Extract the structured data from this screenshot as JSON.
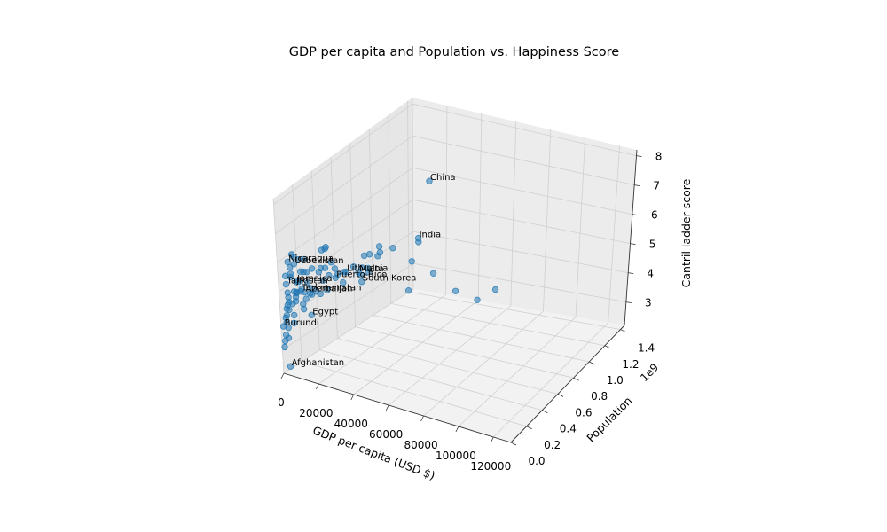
{
  "chart_data": {
    "type": "scatter",
    "projection": "3d",
    "title": "GDP per capita and Population vs. Happiness Score",
    "xlabel": "GDP per capita (USD $)",
    "ylabel": "Population",
    "zlabel": "Cantril ladder score",
    "y_offset_text": "1e9",
    "xlim": [
      0,
      130000
    ],
    "ylim": [
      0,
      1.45
    ],
    "zlim": [
      2.2,
      8.2
    ],
    "xticks": [
      "0",
      "20000",
      "40000",
      "60000",
      "80000",
      "100000",
      "120000"
    ],
    "yticks": [
      "0.0",
      "0.2",
      "0.4",
      "0.6",
      "0.8",
      "1.0",
      "1.2",
      "1.4"
    ],
    "zticks": [
      "3",
      "4",
      "5",
      "6",
      "7",
      "8"
    ],
    "grid": true,
    "point_color": "#1f77b4",
    "points": [
      {
        "x": 12000,
        "y": 1.41,
        "z": 5.8,
        "label": "China"
      },
      {
        "x": 7000,
        "y": 1.38,
        "z": 4.0,
        "label": "India"
      },
      {
        "x": 32000,
        "y": 0.0032,
        "z": 6.0,
        "label": "Puerto Rico"
      },
      {
        "x": 38000,
        "y": 0.0028,
        "z": 6.3,
        "label": "Lithuania"
      },
      {
        "x": 45000,
        "y": 0.0005,
        "z": 6.4,
        "label": "Malta"
      },
      {
        "x": 44000,
        "y": 0.052,
        "z": 5.95,
        "label": "South Korea"
      },
      {
        "x": 5500,
        "y": 0.0066,
        "z": 6.1,
        "label": "Nicaragua"
      },
      {
        "x": 7500,
        "y": 0.034,
        "z": 6.0,
        "label": "Uzbekistan"
      },
      {
        "x": 10000,
        "y": 0.0028,
        "z": 5.5,
        "label": "Jamaica"
      },
      {
        "x": 3800,
        "y": 0.0098,
        "z": 5.3,
        "label": "Tajikistan"
      },
      {
        "x": 14000,
        "y": 0.0102,
        "z": 5.2,
        "label": "Azerbaijan"
      },
      {
        "x": 12000,
        "y": 0.0061,
        "z": 5.2,
        "label": "Turkmenistan"
      },
      {
        "x": 12500,
        "y": 0.1,
        "z": 4.2,
        "label": "Egypt"
      },
      {
        "x": 800,
        "y": 0.012,
        "z": 3.8,
        "label": "Burundi"
      },
      {
        "x": 2100,
        "y": 0.038,
        "z": 2.4,
        "label": "Afghanistan"
      },
      {
        "x": 62000,
        "y": 0.33,
        "z": 6.9
      },
      {
        "x": 44000,
        "y": 0.126,
        "z": 6.1
      },
      {
        "x": 53000,
        "y": 0.083,
        "z": 7.0
      },
      {
        "x": 48000,
        "y": 0.067,
        "z": 6.9
      },
      {
        "x": 45000,
        "y": 0.068,
        "z": 6.8
      },
      {
        "x": 44000,
        "y": 0.06,
        "z": 6.4
      },
      {
        "x": 16000,
        "y": 0.215,
        "z": 6.3
      },
      {
        "x": 26000,
        "y": 0.144,
        "z": 5.7
      },
      {
        "x": 16000,
        "y": 0.17,
        "z": 6.3
      },
      {
        "x": 20000,
        "y": 0.13,
        "z": 6.5
      },
      {
        "x": 12000,
        "y": 0.275,
        "z": 5.4
      },
      {
        "x": 6000,
        "y": 0.235,
        "z": 4.5
      },
      {
        "x": 5000,
        "y": 0.21,
        "z": 5.3
      },
      {
        "x": 4500,
        "y": 0.165,
        "z": 4.3
      },
      {
        "x": 9000,
        "y": 0.115,
        "z": 6.0
      },
      {
        "x": 3500,
        "y": 0.11,
        "z": 6.0
      },
      {
        "x": 54000,
        "y": 0.038,
        "z": 7.0
      },
      {
        "x": 56000,
        "y": 0.017,
        "z": 7.4
      },
      {
        "x": 64000,
        "y": 0.0054,
        "z": 7.5
      },
      {
        "x": 74000,
        "y": 0.0091,
        "z": 7.2
      },
      {
        "x": 86000,
        "y": 0.0038,
        "z": 7.0
      },
      {
        "x": 98000,
        "y": 0.0054,
        "z": 6.6
      },
      {
        "x": 120000,
        "y": 0.0006,
        "z": 7.0
      },
      {
        "x": 110000,
        "y": 0.0027,
        "z": 6.5
      },
      {
        "x": 72000,
        "y": 0.0087,
        "z": 6.2
      },
      {
        "x": 50000,
        "y": 0.0085,
        "z": 6.6
      },
      {
        "x": 46000,
        "y": 0.0104,
        "z": 6.3
      },
      {
        "x": 40000,
        "y": 0.047,
        "z": 6.4
      },
      {
        "x": 34000,
        "y": 0.059,
        "z": 6.1
      },
      {
        "x": 30000,
        "y": 0.038,
        "z": 6.2
      },
      {
        "x": 36000,
        "y": 0.0054,
        "z": 5.9
      },
      {
        "x": 28000,
        "y": 0.0106,
        "z": 6.0
      },
      {
        "x": 25000,
        "y": 0.0035,
        "z": 5.8
      },
      {
        "x": 22000,
        "y": 0.0193,
        "z": 6.0
      },
      {
        "x": 27000,
        "y": 0.0053,
        "z": 5.5
      },
      {
        "x": 18000,
        "y": 0.0091,
        "z": 5.4
      },
      {
        "x": 20000,
        "y": 0.019,
        "z": 5.3
      },
      {
        "x": 15000,
        "y": 0.027,
        "z": 5.5
      },
      {
        "x": 15000,
        "y": 0.0039,
        "z": 5.0
      },
      {
        "x": 13000,
        "y": 0.0127,
        "z": 4.6
      },
      {
        "x": 11000,
        "y": 0.033,
        "z": 5.8
      },
      {
        "x": 9000,
        "y": 0.018,
        "z": 5.1
      },
      {
        "x": 9500,
        "y": 0.0069,
        "z": 5.1
      },
      {
        "x": 8000,
        "y": 0.026,
        "z": 4.9
      },
      {
        "x": 7000,
        "y": 0.042,
        "z": 4.7
      },
      {
        "x": 6500,
        "y": 0.011,
        "z": 5.7
      },
      {
        "x": 6000,
        "y": 0.0172,
        "z": 5.9
      },
      {
        "x": 5000,
        "y": 0.038,
        "z": 5.5
      },
      {
        "x": 4000,
        "y": 0.016,
        "z": 5.0
      },
      {
        "x": 3500,
        "y": 0.031,
        "z": 4.8
      },
      {
        "x": 3000,
        "y": 0.045,
        "z": 4.6
      },
      {
        "x": 2500,
        "y": 0.026,
        "z": 4.4
      },
      {
        "x": 2200,
        "y": 0.055,
        "z": 4.3
      },
      {
        "x": 2000,
        "y": 0.02,
        "z": 4.1
      },
      {
        "x": 1600,
        "y": 0.033,
        "z": 3.9
      },
      {
        "x": 1500,
        "y": 0.022,
        "z": 3.5
      },
      {
        "x": 1200,
        "y": 0.014,
        "z": 3.3
      },
      {
        "x": 1000,
        "y": 0.008,
        "z": 3.1
      },
      {
        "x": 800,
        "y": 0.06,
        "z": 3.3
      },
      {
        "x": 1800,
        "y": 0.045,
        "z": 3.7
      },
      {
        "x": 2800,
        "y": 0.016,
        "z": 4.2
      },
      {
        "x": 4200,
        "y": 0.006,
        "z": 4.6
      },
      {
        "x": 5500,
        "y": 0.035,
        "z": 4.6
      },
      {
        "x": 6000,
        "y": 0.05,
        "z": 5.0
      },
      {
        "x": 3000,
        "y": 0.085,
        "z": 3.8
      },
      {
        "x": 2000,
        "y": 0.11,
        "z": 4.0
      },
      {
        "x": 9000,
        "y": 0.045,
        "z": 5.4
      },
      {
        "x": 11000,
        "y": 0.035,
        "z": 5.2
      },
      {
        "x": 17000,
        "y": 0.011,
        "z": 5.2
      },
      {
        "x": 23000,
        "y": 0.007,
        "z": 5.3
      },
      {
        "x": 14000,
        "y": 0.007,
        "z": 5.9
      },
      {
        "x": 19000,
        "y": 0.004,
        "z": 6.1
      },
      {
        "x": 24000,
        "y": 0.003,
        "z": 6.2
      },
      {
        "x": 30000,
        "y": 0.0021,
        "z": 6.5
      },
      {
        "x": 12000,
        "y": 0.0019,
        "z": 6.3
      },
      {
        "x": 8000,
        "y": 0.0051,
        "z": 6.4
      },
      {
        "x": 4000,
        "y": 0.003,
        "z": 5.6
      }
    ]
  }
}
